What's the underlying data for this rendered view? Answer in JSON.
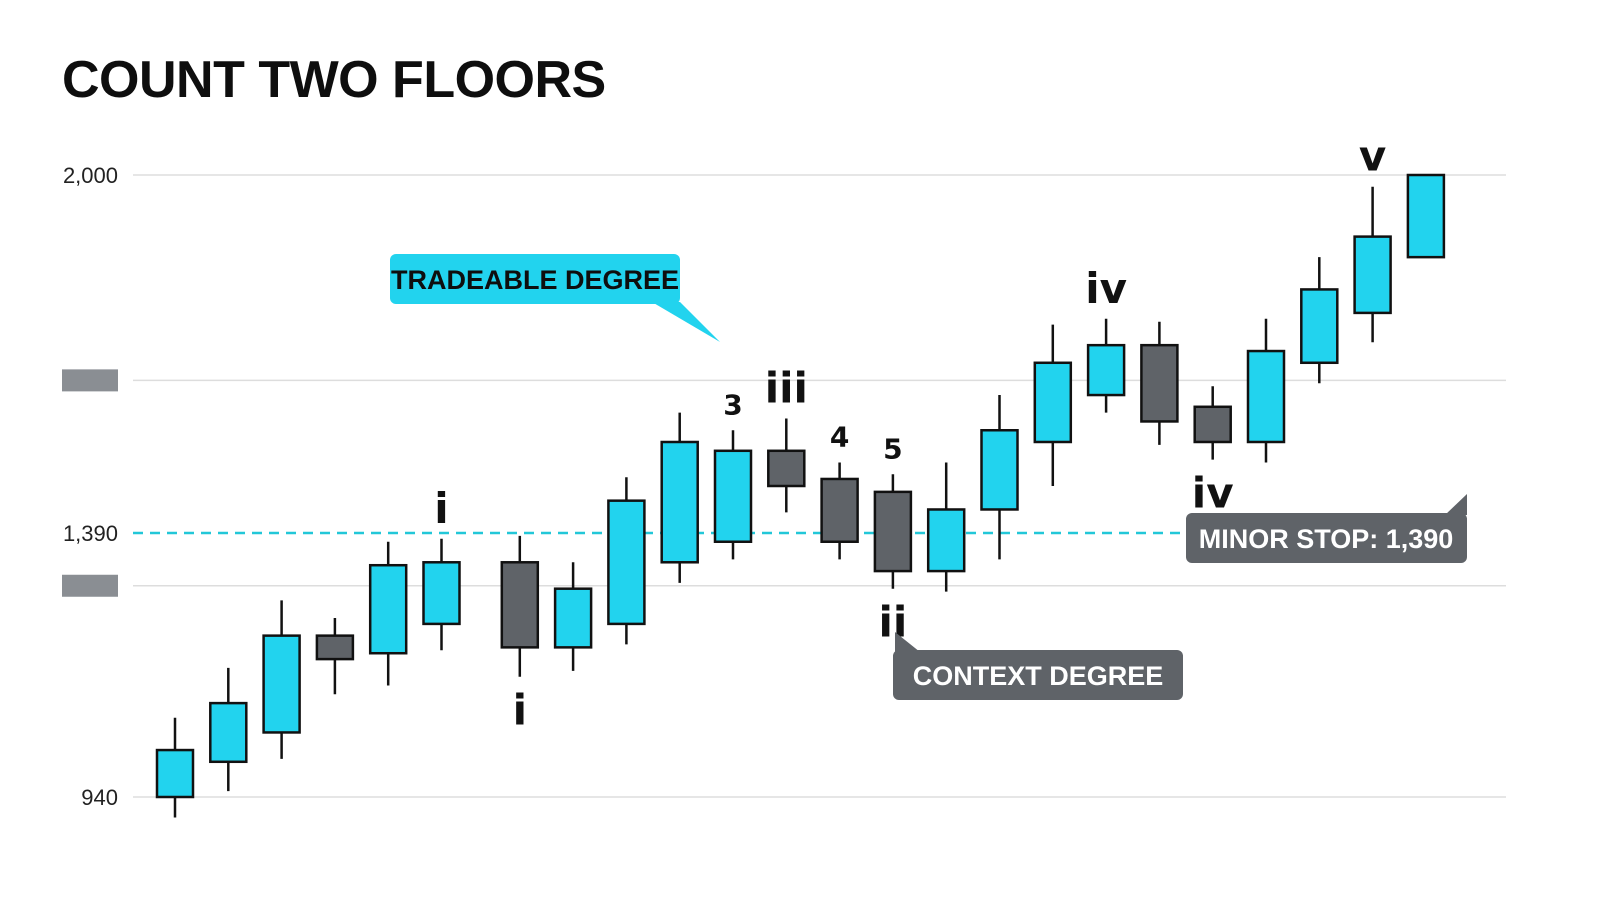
{
  "chart_data": {
    "type": "candlestick",
    "title": "COUNT TWO FLOORS",
    "ylim": [
      940,
      2000
    ],
    "y_ticks": [
      {
        "value": 2000,
        "label": "2,000"
      },
      {
        "value": 1390,
        "label": "1,390"
      },
      {
        "value": 940,
        "label": "940"
      }
    ],
    "unlabeled_gridlines": [
      1650,
      1300
    ],
    "colors": {
      "bull": "#22d3ee",
      "bear": "#5f6368",
      "stop_line": "#22c7d8",
      "grid": "#dddddd"
    },
    "candles": [
      {
        "open": 940,
        "close": 1020,
        "high": 1075,
        "low": 905,
        "dir": "bull"
      },
      {
        "open": 1000,
        "close": 1100,
        "high": 1160,
        "low": 950,
        "dir": "bull"
      },
      {
        "open": 1050,
        "close": 1215,
        "high": 1275,
        "low": 1005,
        "dir": "bull"
      },
      {
        "open": 1215,
        "close": 1175,
        "high": 1245,
        "low": 1115,
        "dir": "bear"
      },
      {
        "open": 1185,
        "close": 1335,
        "high": 1375,
        "low": 1130,
        "dir": "bull"
      },
      {
        "open": 1235,
        "close": 1340,
        "high": 1380,
        "low": 1190,
        "dir": "bull"
      },
      {
        "open": 1340,
        "close": 1195,
        "high": 1385,
        "low": 1145,
        "dir": "bear"
      },
      {
        "open": 1195,
        "close": 1295,
        "high": 1340,
        "low": 1155,
        "dir": "bull"
      },
      {
        "open": 1235,
        "close": 1445,
        "high": 1485,
        "low": 1200,
        "dir": "bull"
      },
      {
        "open": 1340,
        "close": 1545,
        "high": 1595,
        "low": 1305,
        "dir": "bull"
      },
      {
        "open": 1375,
        "close": 1530,
        "high": 1565,
        "low": 1345,
        "dir": "bull"
      },
      {
        "open": 1530,
        "close": 1470,
        "high": 1585,
        "low": 1425,
        "dir": "bear"
      },
      {
        "open": 1482,
        "close": 1375,
        "high": 1510,
        "low": 1345,
        "dir": "bear"
      },
      {
        "open": 1460,
        "close": 1325,
        "high": 1490,
        "low": 1295,
        "dir": "bear"
      },
      {
        "open": 1325,
        "close": 1430,
        "high": 1510,
        "low": 1290,
        "dir": "bull"
      },
      {
        "open": 1430,
        "close": 1565,
        "high": 1625,
        "low": 1345,
        "dir": "bull"
      },
      {
        "open": 1545,
        "close": 1680,
        "high": 1745,
        "low": 1470,
        "dir": "bull"
      },
      {
        "open": 1625,
        "close": 1710,
        "high": 1755,
        "low": 1595,
        "dir": "bull"
      },
      {
        "open": 1710,
        "close": 1580,
        "high": 1750,
        "low": 1540,
        "dir": "bear"
      },
      {
        "open": 1605,
        "close": 1545,
        "high": 1640,
        "low": 1515,
        "dir": "bear"
      },
      {
        "open": 1545,
        "close": 1700,
        "high": 1755,
        "low": 1510,
        "dir": "bull"
      },
      {
        "open": 1680,
        "close": 1805,
        "high": 1860,
        "low": 1645,
        "dir": "bull"
      },
      {
        "open": 1765,
        "close": 1895,
        "high": 1980,
        "low": 1715,
        "dir": "bull"
      },
      {
        "open": 1860,
        "close": 2000,
        "high": 2000,
        "low": 1860,
        "dir": "bull"
      }
    ],
    "wave_labels": [
      {
        "text": "i",
        "candle": 5,
        "anchor": "above",
        "size": "major"
      },
      {
        "text": "i",
        "candle": 6,
        "anchor": "below",
        "size": "major"
      },
      {
        "text": "3",
        "candle": 10,
        "anchor": "above",
        "size": "minor"
      },
      {
        "text": "iii",
        "candle": 11,
        "anchor": "above",
        "size": "major"
      },
      {
        "text": "4",
        "candle": 12,
        "anchor": "above",
        "size": "minor"
      },
      {
        "text": "5",
        "candle": 13,
        "anchor": "above",
        "size": "minor"
      },
      {
        "text": "ii",
        "candle": 13,
        "anchor": "below",
        "size": "major"
      },
      {
        "text": "iv",
        "candle": 17,
        "anchor": "above",
        "size": "major"
      },
      {
        "text": "iv",
        "candle": 19,
        "anchor": "below",
        "size": "major"
      },
      {
        "text": "v",
        "candle": 22,
        "anchor": "above",
        "size": "major"
      }
    ],
    "stop_line": {
      "value": 1390
    },
    "callouts": [
      {
        "text": "TRADEABLE DEGREE",
        "style": "cyan",
        "points_to_candle": 10
      },
      {
        "text": "CONTEXT DEGREE",
        "style": "gray",
        "points_to_candle": 13
      },
      {
        "text": "MINOR STOP: 1,390",
        "style": "gray",
        "points_to": "stop_line"
      }
    ]
  }
}
